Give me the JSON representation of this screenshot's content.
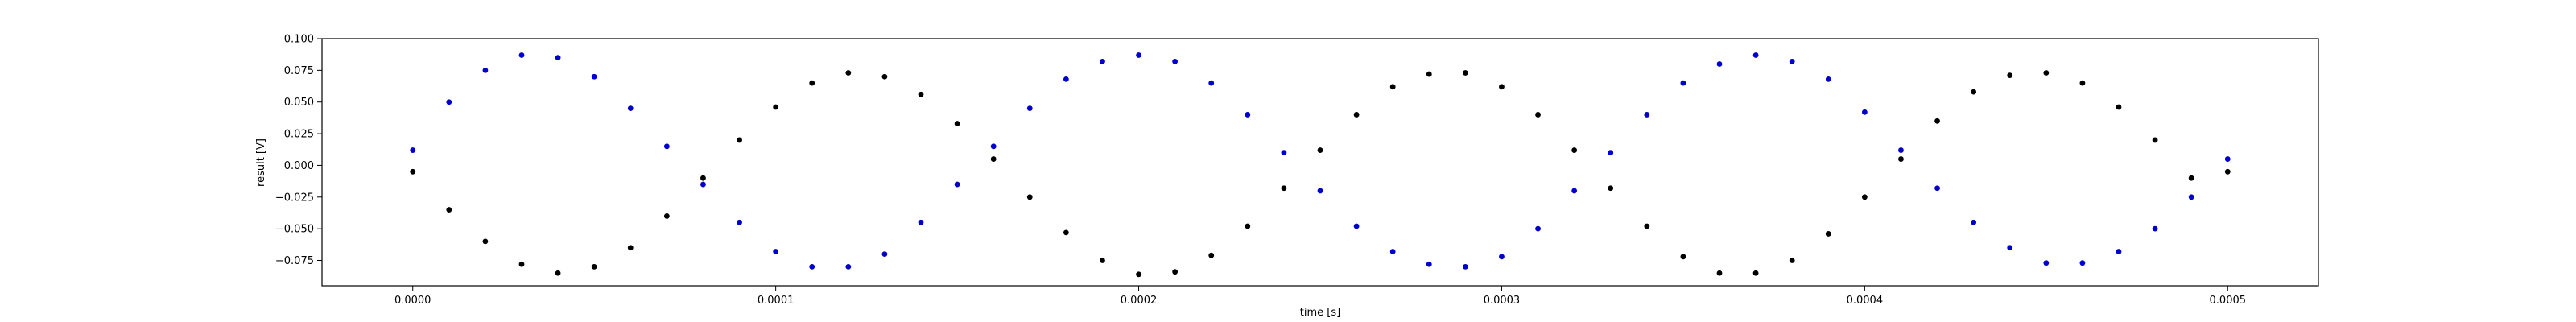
{
  "chart_data": {
    "type": "scatter",
    "title": "",
    "xlabel": "time [s]",
    "ylabel": "result [V]",
    "xlim": [
      -2.5e-05,
      0.000525
    ],
    "ylim": [
      -0.095,
      0.1
    ],
    "xticks": [
      0.0,
      0.0001,
      0.0002,
      0.0003,
      0.0004,
      0.0005
    ],
    "xtick_labels": [
      "0.0000",
      "0.0001",
      "0.0002",
      "0.0003",
      "0.0004",
      "0.0005"
    ],
    "yticks": [
      -0.075,
      -0.05,
      -0.025,
      0.0,
      0.025,
      0.05,
      0.075,
      0.1
    ],
    "ytick_labels": [
      "−0.075",
      "−0.050",
      "−0.025",
      "0.000",
      "0.025",
      "0.050",
      "0.075",
      "0.100"
    ],
    "grid": false,
    "legend": "none",
    "series": [
      {
        "color": "#0000cc",
        "points": [
          [
            0.0,
            0.012
          ],
          [
            1e-05,
            0.05
          ],
          [
            2e-05,
            0.075
          ],
          [
            3e-05,
            0.087
          ],
          [
            4e-05,
            0.085
          ],
          [
            5e-05,
            0.07
          ],
          [
            6e-05,
            0.045
          ],
          [
            7e-05,
            0.015
          ],
          [
            8e-05,
            -0.015
          ],
          [
            9e-05,
            -0.045
          ],
          [
            0.0001,
            -0.068
          ],
          [
            0.00011,
            -0.08
          ],
          [
            0.00012,
            -0.08
          ],
          [
            0.00013,
            -0.07
          ],
          [
            0.00014,
            -0.045
          ],
          [
            0.00015,
            -0.015
          ],
          [
            0.00016,
            0.015
          ],
          [
            0.00017,
            0.045
          ],
          [
            0.00018,
            0.068
          ],
          [
            0.00019,
            0.082
          ],
          [
            0.0002,
            0.087
          ],
          [
            0.00021,
            0.082
          ],
          [
            0.00022,
            0.065
          ],
          [
            0.00023,
            0.04
          ],
          [
            0.00024,
            0.01
          ],
          [
            0.00025,
            -0.02
          ],
          [
            0.00026,
            -0.048
          ],
          [
            0.00027,
            -0.068
          ],
          [
            0.00028,
            -0.078
          ],
          [
            0.00029,
            -0.08
          ],
          [
            0.0003,
            -0.072
          ],
          [
            0.00031,
            -0.05
          ],
          [
            0.00032,
            -0.02
          ],
          [
            0.00033,
            0.01
          ],
          [
            0.00034,
            0.04
          ],
          [
            0.00035,
            0.065
          ],
          [
            0.00036,
            0.08
          ],
          [
            0.00037,
            0.087
          ],
          [
            0.00038,
            0.082
          ],
          [
            0.00039,
            0.068
          ],
          [
            0.0004,
            0.042
          ],
          [
            0.00041,
            0.012
          ],
          [
            0.00042,
            -0.018
          ],
          [
            0.00043,
            -0.045
          ],
          [
            0.00044,
            -0.065
          ],
          [
            0.00045,
            -0.077
          ],
          [
            0.00046,
            -0.077
          ],
          [
            0.00047,
            -0.068
          ],
          [
            0.00048,
            -0.05
          ],
          [
            0.00049,
            -0.025
          ],
          [
            0.0005,
            0.005
          ]
        ]
      },
      {
        "color": "#000000",
        "points": [
          [
            0.0,
            -0.005
          ],
          [
            1e-05,
            -0.035
          ],
          [
            2e-05,
            -0.06
          ],
          [
            3e-05,
            -0.078
          ],
          [
            4e-05,
            -0.085
          ],
          [
            5e-05,
            -0.08
          ],
          [
            6e-05,
            -0.065
          ],
          [
            7e-05,
            -0.04
          ],
          [
            8e-05,
            -0.01
          ],
          [
            9e-05,
            0.02
          ],
          [
            0.0001,
            0.046
          ],
          [
            0.00011,
            0.065
          ],
          [
            0.00012,
            0.073
          ],
          [
            0.00013,
            0.07
          ],
          [
            0.00014,
            0.056
          ],
          [
            0.00015,
            0.033
          ],
          [
            0.00016,
            0.005
          ],
          [
            0.00017,
            -0.025
          ],
          [
            0.00018,
            -0.053
          ],
          [
            0.00019,
            -0.075
          ],
          [
            0.0002,
            -0.086
          ],
          [
            0.00021,
            -0.084
          ],
          [
            0.00022,
            -0.071
          ],
          [
            0.00023,
            -0.048
          ],
          [
            0.00024,
            -0.018
          ],
          [
            0.00025,
            0.012
          ],
          [
            0.00026,
            0.04
          ],
          [
            0.00027,
            0.062
          ],
          [
            0.00028,
            0.072
          ],
          [
            0.00029,
            0.073
          ],
          [
            0.0003,
            0.062
          ],
          [
            0.00031,
            0.04
          ],
          [
            0.00032,
            0.012
          ],
          [
            0.00033,
            -0.018
          ],
          [
            0.00034,
            -0.048
          ],
          [
            0.00035,
            -0.072
          ],
          [
            0.00036,
            -0.085
          ],
          [
            0.00037,
            -0.085
          ],
          [
            0.00038,
            -0.075
          ],
          [
            0.00039,
            -0.054
          ],
          [
            0.0004,
            -0.025
          ],
          [
            0.00041,
            0.005
          ],
          [
            0.00042,
            0.035
          ],
          [
            0.00043,
            0.058
          ],
          [
            0.00044,
            0.071
          ],
          [
            0.00045,
            0.073
          ],
          [
            0.00046,
            0.065
          ],
          [
            0.00047,
            0.046
          ],
          [
            0.00048,
            0.02
          ],
          [
            0.00049,
            -0.01
          ],
          [
            0.0005,
            -0.005
          ]
        ]
      }
    ]
  }
}
